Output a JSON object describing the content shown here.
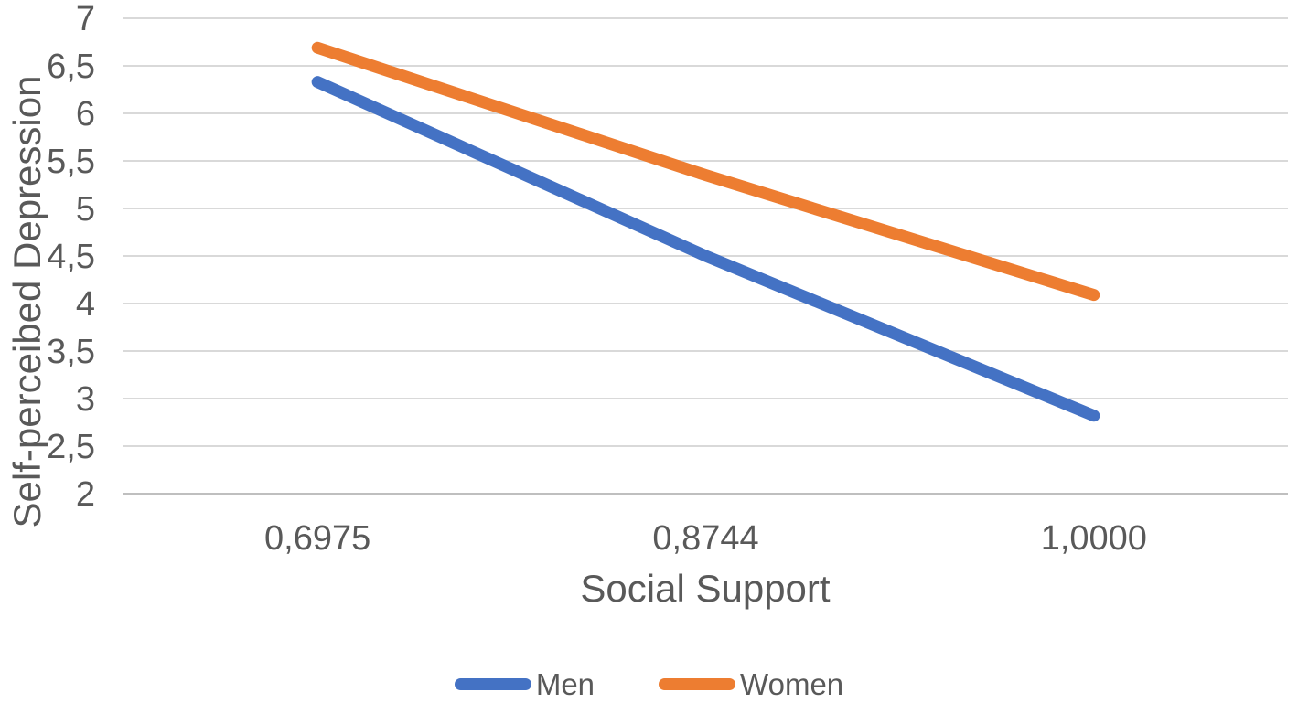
{
  "chart_data": {
    "type": "line",
    "title": "",
    "xlabel": "Social Support",
    "ylabel": "Self-perceibed Depression",
    "categories": [
      "0,6975",
      "0,8744",
      "1,0000"
    ],
    "category_values": [
      0.6975,
      0.8744,
      1.0
    ],
    "series": [
      {
        "name": "Men",
        "color": "#4472C4",
        "values": [
          6.33,
          4.5,
          2.82
        ]
      },
      {
        "name": "Women",
        "color": "#ED7D31",
        "values": [
          6.69,
          5.35,
          4.09
        ]
      }
    ],
    "ylim": [
      2,
      7
    ],
    "y_ticks": [
      {
        "value": 7,
        "label": "7"
      },
      {
        "value": 6.5,
        "label": "6,5"
      },
      {
        "value": 6,
        "label": "6"
      },
      {
        "value": 5.5,
        "label": "5,5"
      },
      {
        "value": 5,
        "label": "5"
      },
      {
        "value": 4.5,
        "label": "4,5"
      },
      {
        "value": 4,
        "label": "4"
      },
      {
        "value": 3.5,
        "label": "3,5"
      },
      {
        "value": 3,
        "label": "3"
      },
      {
        "value": 2.5,
        "label": "2,5"
      },
      {
        "value": 2,
        "label": "2"
      }
    ],
    "grid": true,
    "legend_position": "bottom",
    "colors": {
      "gridline": "#D9D9D9",
      "axis_line": "#BFBFBF",
      "text": "#595959"
    }
  }
}
